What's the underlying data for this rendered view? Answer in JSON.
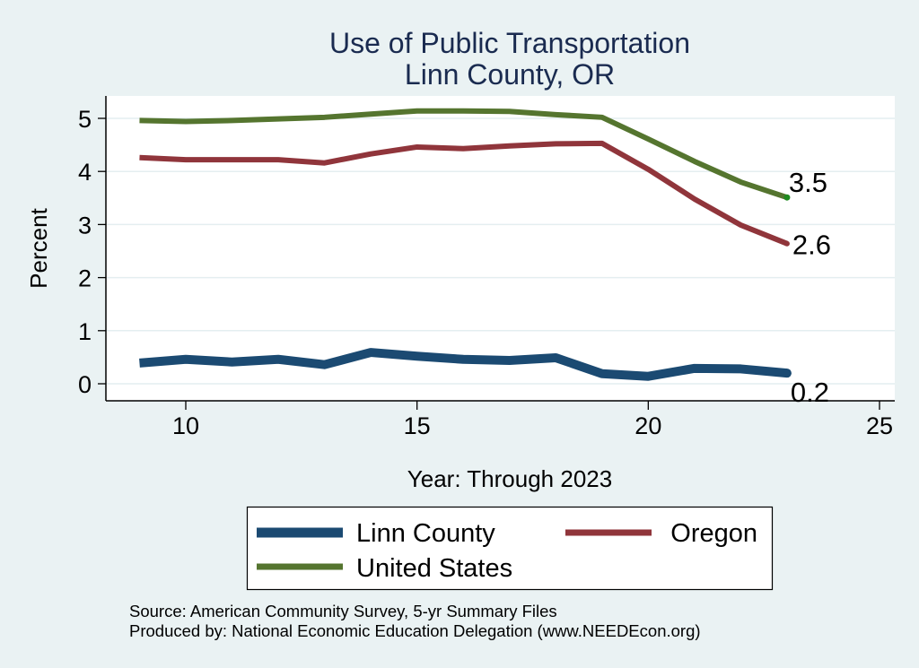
{
  "chart_data": {
    "type": "line",
    "title": "Use of Public Transportation",
    "subtitle": "Linn County, OR",
    "xlabel": "Year: Through 2023",
    "ylabel": "Percent",
    "xlim": [
      8.5,
      25.3
    ],
    "ylim": [
      -0.32,
      5.38
    ],
    "xticks": [
      10,
      15,
      20,
      25
    ],
    "yticks": [
      0,
      1,
      2,
      3,
      4,
      5
    ],
    "grid": true,
    "legend_position": "bottom",
    "x": [
      9,
      10,
      11,
      12,
      13,
      14,
      15,
      16,
      17,
      18,
      19,
      20,
      21,
      22,
      23
    ],
    "series": [
      {
        "name": "Linn County",
        "color": "#1b4a72",
        "values": [
          0.39,
          0.46,
          0.41,
          0.46,
          0.36,
          0.59,
          0.52,
          0.46,
          0.44,
          0.49,
          0.19,
          0.14,
          0.29,
          0.28,
          0.2
        ],
        "end_label": "0.2"
      },
      {
        "name": "Oregon",
        "color": "#90353b",
        "values": [
          4.26,
          4.22,
          4.22,
          4.22,
          4.16,
          4.33,
          4.46,
          4.43,
          4.48,
          4.52,
          4.53,
          4.04,
          3.48,
          2.99,
          2.64
        ],
        "end_label": "2.6"
      },
      {
        "name": "United States",
        "color": "#55752f",
        "values": [
          4.96,
          4.94,
          4.96,
          4.99,
          5.02,
          5.08,
          5.14,
          5.14,
          5.13,
          5.07,
          5.02,
          4.61,
          4.19,
          3.8,
          3.51
        ],
        "end_label": "3.5"
      }
    ],
    "legend": {
      "items": [
        "Linn County",
        "Oregon",
        "United States"
      ]
    },
    "notes": [
      "Source: American Community Survey, 5-yr Summary Files",
      "Produced by: National Economic Education Delegation (www.NEEDEcon.org)"
    ]
  }
}
